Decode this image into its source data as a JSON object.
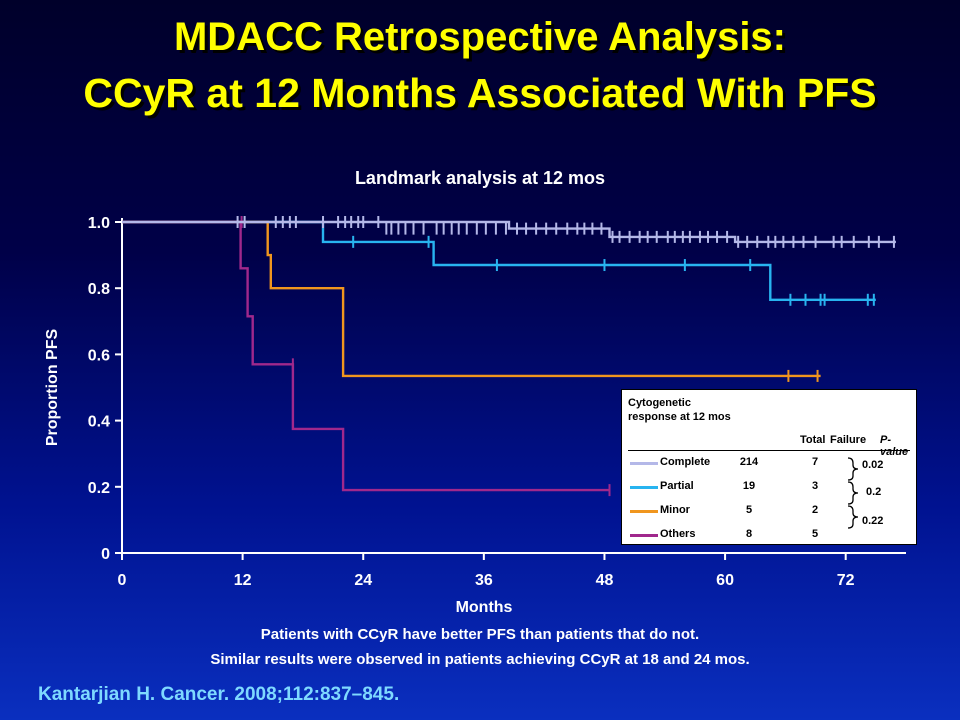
{
  "slide": {
    "title_line1": "MDACC Retrospective Analysis:",
    "title_line2": "CCyR at 12 Months Associated With PFS",
    "footer_line1": "Patients with CCyR have better PFS than patients that do not.",
    "footer_line2": "Similar results were observed in patients achieving CCyR at 18 and 24 mos.",
    "citation": "Kantarjian H. Cancer. 2008;112:837–845."
  },
  "chart_data": {
    "type": "line",
    "title": "Landmark analysis at 12 mos",
    "xlabel": "Months",
    "ylabel": "Proportion PFS",
    "xlim": [
      0,
      78
    ],
    "ylim": [
      0,
      1.0
    ],
    "x_ticks": [
      0,
      12,
      24,
      36,
      48,
      60,
      72
    ],
    "x_tick_labels": [
      "0",
      "12",
      "24",
      "36",
      "48",
      "60",
      "72"
    ],
    "y_ticks": [
      0,
      0.2,
      0.4,
      0.6,
      0.8,
      1.0
    ],
    "y_tick_labels": [
      "0",
      "0.2",
      "0.4",
      "0.6",
      "0.8",
      "1.0"
    ],
    "grid": false,
    "legend_position": "bottom-right",
    "legend_header": {
      "group": "Cytogenetic response at 12 mos",
      "total": "Total",
      "failure": "Failure",
      "pvalue": "P-value"
    },
    "pvalues": [
      "0.02",
      "0.2",
      "0.22"
    ],
    "series": [
      {
        "name": "Complete",
        "total": "214",
        "failure": "7",
        "color": "#b4b8e8",
        "x": [
          0,
          38.5,
          38.5,
          48.5,
          48.5,
          61,
          61,
          77
        ],
        "y": [
          1.0,
          1.0,
          0.98,
          0.98,
          0.955,
          0.955,
          0.94,
          0.94
        ],
        "censor_x": [
          11.5,
          12.2,
          15.3,
          16,
          16.7,
          17.3,
          20,
          21.5,
          22.2,
          22.8,
          23.5,
          24,
          25.5,
          26.3,
          26.8,
          27.5,
          28.2,
          29,
          30,
          31.3,
          32,
          32.8,
          33.5,
          34.3,
          35.3,
          36.2,
          37.2,
          38.2,
          39.3,
          40.2,
          41.2,
          42.2,
          43.2,
          44.3,
          45.3,
          46,
          46.8,
          47.7,
          48.8,
          49.5,
          50.5,
          51.5,
          52.3,
          53.2,
          54.3,
          55,
          55.8,
          56.5,
          57.5,
          58.3,
          59.2,
          60.2,
          61.3,
          62.2,
          63.2,
          64.3,
          65,
          65.8,
          66.8,
          67.8,
          69,
          70.8,
          71.6,
          72.8,
          74.3,
          75.3,
          76.8
        ],
        "censor_y": [
          1.0,
          1.0,
          1.0,
          1.0,
          1.0,
          1.0,
          1.0,
          1.0,
          1.0,
          1.0,
          1.0,
          1.0,
          1.0,
          0.98,
          0.98,
          0.98,
          0.98,
          0.98,
          0.98,
          0.98,
          0.98,
          0.98,
          0.98,
          0.98,
          0.98,
          0.98,
          0.98,
          0.98,
          0.98,
          0.98,
          0.98,
          0.98,
          0.98,
          0.98,
          0.98,
          0.98,
          0.98,
          0.98,
          0.955,
          0.955,
          0.955,
          0.955,
          0.955,
          0.955,
          0.955,
          0.955,
          0.955,
          0.955,
          0.955,
          0.955,
          0.955,
          0.955,
          0.94,
          0.94,
          0.94,
          0.94,
          0.94,
          0.94,
          0.94,
          0.94,
          0.94,
          0.94,
          0.94,
          0.94,
          0.94,
          0.94,
          0.94
        ]
      },
      {
        "name": "Partial",
        "total": "19",
        "failure": "3",
        "color": "#28b4f0",
        "x": [
          0,
          20,
          20,
          31,
          31,
          64.5,
          64.5,
          75
        ],
        "y": [
          1.0,
          1.0,
          0.94,
          0.94,
          0.87,
          0.87,
          0.765,
          0.765
        ],
        "censor_x": [
          23,
          30.5,
          37.3,
          48,
          56,
          62.5,
          66.5,
          68,
          69.5,
          69.9,
          74.2,
          74.8
        ],
        "censor_y": [
          0.94,
          0.94,
          0.87,
          0.87,
          0.87,
          0.87,
          0.765,
          0.765,
          0.765,
          0.765,
          0.765,
          0.765
        ]
      },
      {
        "name": "Minor",
        "total": "5",
        "failure": "2",
        "color": "#f0961e",
        "x": [
          0,
          14.5,
          14.5,
          14.8,
          14.8,
          22,
          22,
          69.5
        ],
        "y": [
          1.0,
          1.0,
          0.9,
          0.9,
          0.8,
          0.8,
          0.535,
          0.535
        ],
        "censor_x": [
          66.3,
          69.2
        ],
        "censor_y": [
          0.535,
          0.535
        ]
      },
      {
        "name": "Others",
        "total": "8",
        "failure": "5",
        "color": "#a0288c",
        "x": [
          0,
          11.8,
          11.8,
          12.5,
          12.5,
          13,
          13,
          13.3,
          13.3,
          17,
          17,
          22,
          22,
          48.5
        ],
        "y": [
          1.0,
          1.0,
          0.86,
          0.86,
          0.715,
          0.715,
          0.57,
          0.57,
          0.57,
          0.57,
          0.375,
          0.375,
          0.19,
          0.19
        ],
        "censor_x": [
          11.9,
          17,
          48.5
        ],
        "censor_y": [
          1.0,
          0.57,
          0.19
        ]
      }
    ]
  }
}
